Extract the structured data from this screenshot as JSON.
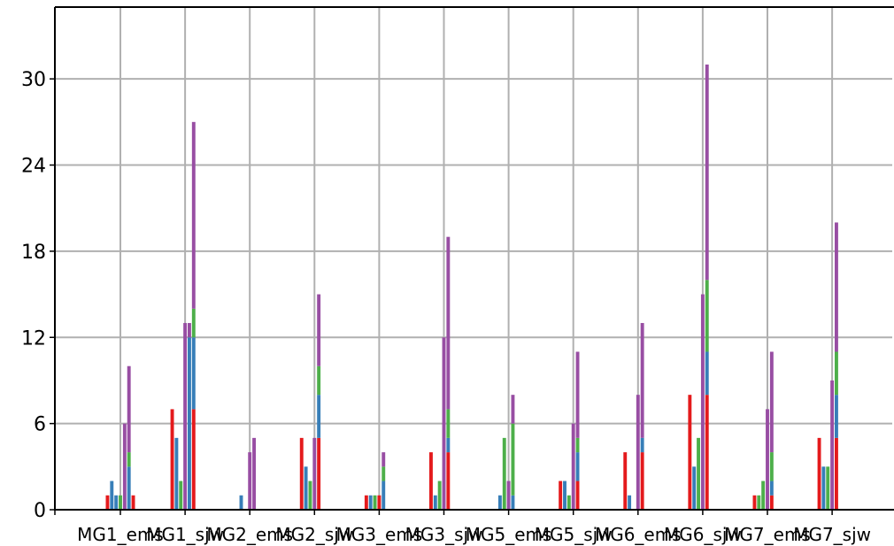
{
  "chart_data": {
    "type": "bar",
    "stacked": true,
    "categories": [
      "MG1_ems",
      "MG1_sjw",
      "MG2_ems",
      "MG2_sjw",
      "MG3_ems",
      "MG3_sjw",
      "MG5_ems",
      "MG5_sjw",
      "MG6_ems",
      "MG6_sjw",
      "MG7_ems",
      "MG7_sjw"
    ],
    "bars_per_category": 7,
    "segment_colors": [
      "#e41a1c",
      "#377eb8",
      "#4daf4a",
      "#984ea3"
    ],
    "stacks": [
      [
        [
          1,
          0,
          0,
          0
        ],
        [
          0,
          2,
          0,
          0
        ],
        [
          0,
          1,
          0,
          0
        ],
        [
          0,
          0,
          1,
          0
        ],
        [
          0,
          0,
          0,
          6
        ],
        [
          0,
          3,
          1,
          6
        ],
        [
          1,
          0,
          0,
          0
        ]
      ],
      [
        [
          7,
          0,
          0,
          0
        ],
        [
          0,
          5,
          0,
          0
        ],
        [
          0,
          0,
          2,
          0
        ],
        [
          0,
          0,
          0,
          13
        ],
        [
          0,
          12,
          0,
          1
        ],
        [
          7,
          5,
          2,
          13
        ],
        [
          0,
          0,
          0,
          0
        ]
      ],
      [
        [
          0,
          0,
          0,
          0
        ],
        [
          0,
          1,
          0,
          0
        ],
        [
          0,
          0,
          0,
          0
        ],
        [
          0,
          0,
          0,
          4
        ],
        [
          0,
          0,
          0,
          5
        ],
        [
          0,
          0,
          0,
          0
        ],
        [
          0,
          0,
          0,
          0
        ]
      ],
      [
        [
          5,
          0,
          0,
          0
        ],
        [
          0,
          3,
          0,
          0
        ],
        [
          0,
          0,
          2,
          0
        ],
        [
          0,
          0,
          0,
          5
        ],
        [
          5,
          3,
          2,
          5
        ],
        [
          0,
          0,
          0,
          0
        ],
        [
          0,
          0,
          0,
          0
        ]
      ],
      [
        [
          1,
          0,
          0,
          0
        ],
        [
          0,
          1,
          0,
          0
        ],
        [
          0,
          0,
          1,
          0
        ],
        [
          1,
          0,
          0,
          0
        ],
        [
          0,
          2,
          1,
          1
        ],
        [
          0,
          0,
          0,
          0
        ],
        [
          0,
          0,
          0,
          0
        ]
      ],
      [
        [
          4,
          0,
          0,
          0
        ],
        [
          0,
          1,
          0,
          0
        ],
        [
          0,
          0,
          2,
          0
        ],
        [
          0,
          0,
          0,
          12
        ],
        [
          4,
          1,
          2,
          12
        ],
        [
          0,
          0,
          0,
          0
        ],
        [
          0,
          0,
          0,
          0
        ]
      ],
      [
        [
          0,
          0,
          0,
          0
        ],
        [
          0,
          1,
          0,
          0
        ],
        [
          0,
          0,
          5,
          0
        ],
        [
          0,
          0,
          0,
          2
        ],
        [
          0,
          1,
          5,
          2
        ],
        [
          0,
          0,
          0,
          0
        ],
        [
          0,
          0,
          0,
          0
        ]
      ],
      [
        [
          2,
          0,
          0,
          0
        ],
        [
          0,
          2,
          0,
          0
        ],
        [
          0,
          0,
          1,
          0
        ],
        [
          0,
          0,
          0,
          6
        ],
        [
          2,
          2,
          1,
          6
        ],
        [
          0,
          0,
          0,
          0
        ],
        [
          0,
          0,
          0,
          0
        ]
      ],
      [
        [
          4,
          0,
          0,
          0
        ],
        [
          0,
          1,
          0,
          0
        ],
        [
          0,
          0,
          0,
          0
        ],
        [
          0,
          0,
          0,
          8
        ],
        [
          4,
          1,
          0,
          8
        ],
        [
          0,
          0,
          0,
          0
        ],
        [
          0,
          0,
          0,
          0
        ]
      ],
      [
        [
          8,
          0,
          0,
          0
        ],
        [
          0,
          3,
          0,
          0
        ],
        [
          0,
          0,
          5,
          0
        ],
        [
          0,
          0,
          0,
          15
        ],
        [
          8,
          3,
          5,
          15
        ],
        [
          0,
          0,
          0,
          0
        ],
        [
          0,
          0,
          0,
          0
        ]
      ],
      [
        [
          1,
          0,
          0,
          0
        ],
        [
          0,
          0,
          1,
          0
        ],
        [
          0,
          0,
          2,
          0
        ],
        [
          0,
          0,
          0,
          7
        ],
        [
          1,
          1,
          2,
          7
        ],
        [
          0,
          0,
          0,
          0
        ],
        [
          0,
          0,
          0,
          0
        ]
      ],
      [
        [
          5,
          0,
          0,
          0
        ],
        [
          0,
          3,
          0,
          0
        ],
        [
          0,
          0,
          3,
          0
        ],
        [
          0,
          0,
          0,
          9
        ],
        [
          5,
          3,
          3,
          9
        ],
        [
          0,
          0,
          0,
          0
        ],
        [
          0,
          0,
          0,
          0
        ]
      ]
    ],
    "yticks": [
      0,
      6,
      12,
      18,
      24,
      30
    ],
    "ylim": [
      0,
      35
    ],
    "grid": true,
    "title": "",
    "xlabel": "",
    "ylabel": ""
  }
}
